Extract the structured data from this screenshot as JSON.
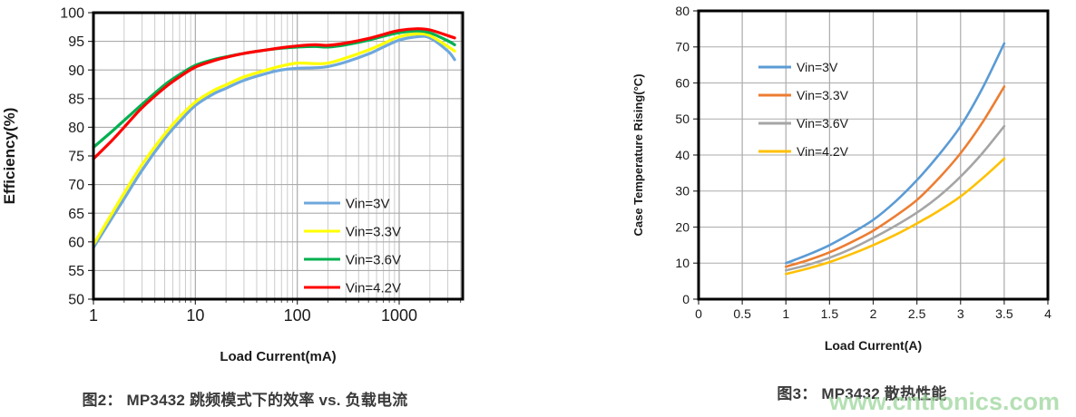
{
  "page": {
    "background": "#ffffff"
  },
  "watermark": {
    "text": "www.cntronics.com",
    "color": "#9cd69c"
  },
  "figures": [
    {
      "caption": "图2： MP3432 跳频模式下的效率 vs. 负载电流"
    },
    {
      "caption": "图3： MP3432 散热性能"
    }
  ],
  "chart_data": [
    {
      "type": "line",
      "title": "",
      "xlabel": "Load Current(mA)",
      "ylabel": "Efficiency(%)",
      "x_scale": "log",
      "xlim": [
        1,
        4200
      ],
      "ylim": [
        50,
        100
      ],
      "x_ticks": [
        1,
        10,
        100,
        1000
      ],
      "y_ticks": [
        50,
        55,
        60,
        65,
        70,
        75,
        80,
        85,
        90,
        95,
        100
      ],
      "grid": true,
      "legend_position": "inside-bottom-right",
      "x": [
        1,
        1.5,
        2,
        3,
        5,
        7,
        10,
        15,
        20,
        30,
        50,
        70,
        100,
        150,
        200,
        300,
        500,
        700,
        1000,
        1500,
        2000,
        3000,
        3500
      ],
      "series": [
        {
          "name": "Vin=3V",
          "color": "#6fa8dc",
          "values": [
            59.0,
            64.0,
            67.5,
            72.5,
            78.0,
            81.0,
            83.8,
            85.8,
            86.8,
            88.2,
            89.4,
            90.0,
            90.3,
            90.4,
            90.6,
            91.4,
            92.8,
            94.0,
            95.2,
            95.8,
            95.6,
            93.3,
            91.8
          ]
        },
        {
          "name": "Vin=3.3V",
          "color": "#ffff00",
          "values": [
            59.5,
            64.8,
            68.5,
            73.5,
            78.8,
            81.8,
            84.4,
            86.4,
            87.4,
            88.8,
            90.0,
            90.7,
            91.2,
            91.1,
            91.2,
            92.1,
            93.5,
            94.6,
            95.8,
            96.3,
            96.0,
            94.1,
            93.3
          ]
        },
        {
          "name": "Vin=3.6V",
          "color": "#00b050",
          "values": [
            76.5,
            79.2,
            81.2,
            84.0,
            87.4,
            89.2,
            90.8,
            91.8,
            92.3,
            92.9,
            93.5,
            93.8,
            94.0,
            94.1,
            94.0,
            94.4,
            95.2,
            95.9,
            96.5,
            96.8,
            96.5,
            95.1,
            94.4
          ]
        },
        {
          "name": "Vin=4.2V",
          "color": "#ff0000",
          "values": [
            74.5,
            77.6,
            80.0,
            83.4,
            86.9,
            88.8,
            90.5,
            91.6,
            92.2,
            92.9,
            93.5,
            93.9,
            94.2,
            94.4,
            94.3,
            94.7,
            95.5,
            96.2,
            96.9,
            97.2,
            97.0,
            96.0,
            95.6
          ]
        }
      ]
    },
    {
      "type": "line",
      "title": "",
      "xlabel": "Load Current(A)",
      "ylabel": "Case Temperature Rising(°C)",
      "x_scale": "linear",
      "xlim": [
        0,
        4
      ],
      "ylim": [
        0,
        80
      ],
      "x_ticks": [
        0,
        0.5,
        1,
        1.5,
        2,
        2.5,
        3,
        3.5,
        4
      ],
      "y_ticks": [
        0,
        10,
        20,
        30,
        40,
        50,
        60,
        70,
        80
      ],
      "grid": true,
      "legend_position": "inside-top-left",
      "x": [
        1,
        1.25,
        1.5,
        1.75,
        2,
        2.25,
        2.5,
        2.75,
        3,
        3.25,
        3.5
      ],
      "series": [
        {
          "name": "Vin=3V",
          "color": "#5b9bd5",
          "values": [
            10.0,
            12.3,
            15.0,
            18.3,
            22.0,
            27.0,
            33.0,
            40.0,
            48.0,
            58.5,
            71.0
          ]
        },
        {
          "name": "Vin=3.3V",
          "color": "#ed7d31",
          "values": [
            9.0,
            10.8,
            13.0,
            15.8,
            19.0,
            23.0,
            27.5,
            33.5,
            40.5,
            49.0,
            59.0
          ]
        },
        {
          "name": "Vin=3.6V",
          "color": "#a5a5a5",
          "values": [
            8.0,
            9.5,
            11.5,
            14.0,
            17.0,
            20.3,
            24.0,
            28.5,
            34.0,
            40.5,
            48.0
          ]
        },
        {
          "name": "Vin=4.2V",
          "color": "#ffc000",
          "values": [
            7.0,
            8.5,
            10.3,
            12.5,
            15.0,
            17.8,
            21.0,
            24.5,
            28.5,
            33.5,
            39.0
          ]
        }
      ]
    }
  ]
}
